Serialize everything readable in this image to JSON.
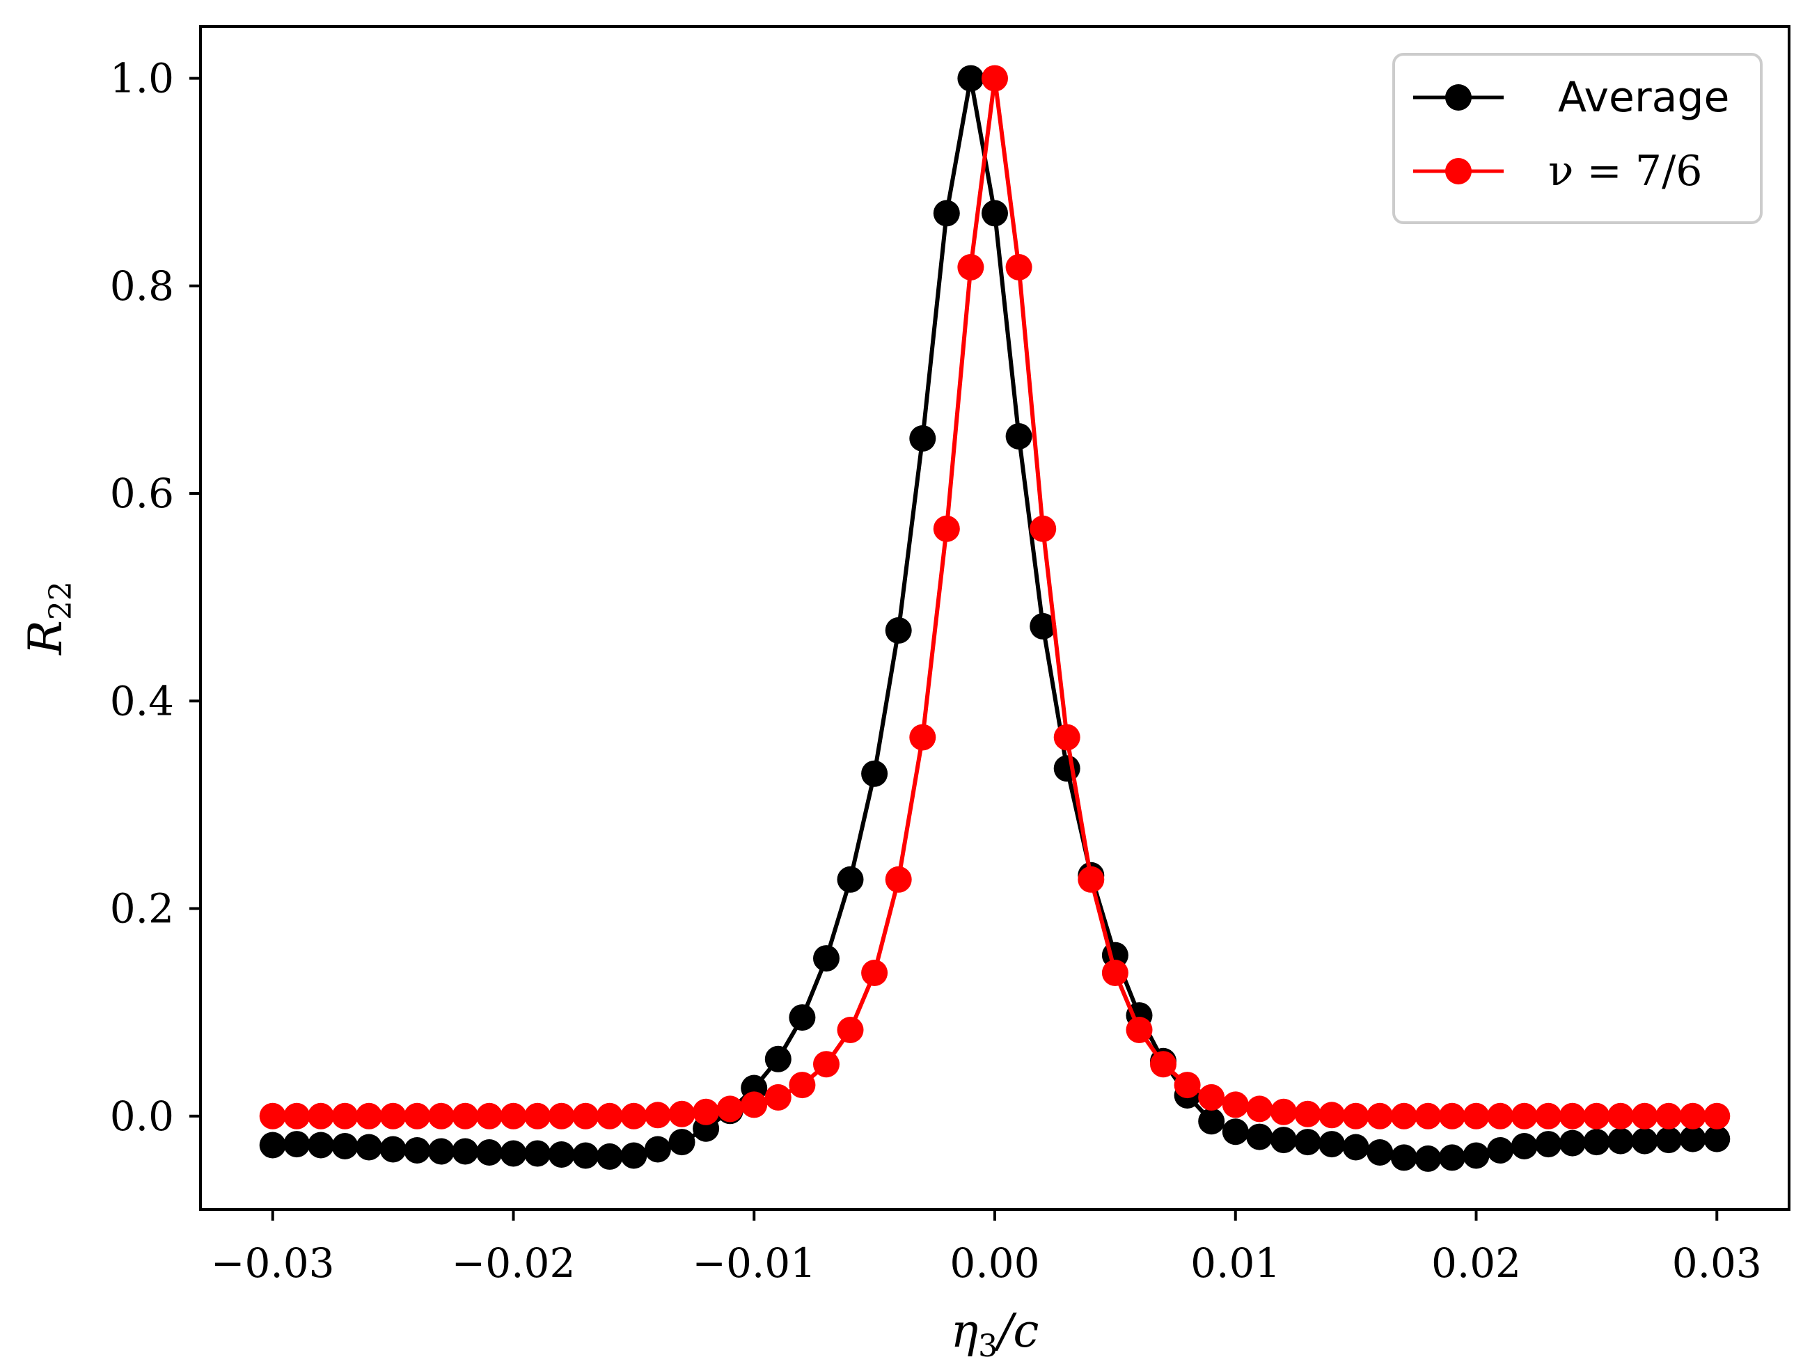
{
  "chart_data": {
    "type": "line",
    "xlabel": "η3/c",
    "xlabel_base": "η",
    "xlabel_sub": "3",
    "xlabel_tail": "/c",
    "ylabel": "R22",
    "ylabel_base": "R",
    "ylabel_sub": "22",
    "xlim": [
      -0.033,
      0.033
    ],
    "ylim": [
      -0.09,
      1.05
    ],
    "xticks": [
      -0.03,
      -0.02,
      -0.01,
      0.0,
      0.01,
      0.02,
      0.03
    ],
    "xtick_labels": [
      "−0.03",
      "−0.02",
      "−0.01",
      "0.00",
      "0.01",
      "0.02",
      "0.03"
    ],
    "yticks": [
      0.0,
      0.2,
      0.4,
      0.6,
      0.8,
      1.0
    ],
    "ytick_labels": [
      "0.0",
      "0.2",
      "0.4",
      "0.6",
      "0.8",
      "1.0"
    ],
    "grid": false,
    "legend_position": "top-right",
    "x": [
      -0.03,
      -0.029,
      -0.028,
      -0.027,
      -0.026,
      -0.025,
      -0.024,
      -0.023,
      -0.022,
      -0.021,
      -0.02,
      -0.019,
      -0.018,
      -0.017,
      -0.016,
      -0.015,
      -0.014,
      -0.013,
      -0.012,
      -0.011,
      -0.01,
      -0.009,
      -0.008,
      -0.007,
      -0.006,
      -0.005,
      -0.004,
      -0.003,
      -0.002,
      -0.001,
      0.0,
      0.001,
      0.002,
      0.003,
      0.004,
      0.005,
      0.006,
      0.007,
      0.008,
      0.009,
      0.01,
      0.011,
      0.012,
      0.013,
      0.014,
      0.015,
      0.016,
      0.017,
      0.018,
      0.019,
      0.02,
      0.021,
      0.022,
      0.023,
      0.024,
      0.025,
      0.026,
      0.027,
      0.028,
      0.029,
      0.03
    ],
    "series": [
      {
        "name": "Average",
        "color": "#000000",
        "values": [
          -0.028,
          -0.027,
          -0.028,
          -0.029,
          -0.03,
          -0.032,
          -0.033,
          -0.034,
          -0.034,
          -0.035,
          -0.036,
          -0.036,
          -0.037,
          -0.038,
          -0.039,
          -0.038,
          -0.032,
          -0.025,
          -0.012,
          0.005,
          0.027,
          0.055,
          0.095,
          0.152,
          0.228,
          0.33,
          0.468,
          0.653,
          0.87,
          1.0,
          0.87,
          0.655,
          0.472,
          0.335,
          0.232,
          0.155,
          0.097,
          0.053,
          0.02,
          -0.005,
          -0.015,
          -0.02,
          -0.023,
          -0.025,
          -0.027,
          -0.03,
          -0.035,
          -0.04,
          -0.041,
          -0.04,
          -0.038,
          -0.033,
          -0.029,
          -0.027,
          -0.026,
          -0.025,
          -0.024,
          -0.024,
          -0.023,
          -0.022,
          -0.022
        ]
      },
      {
        "name": "ν = 7/6",
        "name_math": "ν = 7/6",
        "color": "#ff0000",
        "values": [
          0.0,
          0.0,
          0.0,
          0.0,
          0.0,
          0.0,
          0.0,
          0.0,
          0.0,
          0.0,
          0.0,
          0.0,
          0.0,
          0.0,
          0.0,
          0.0,
          0.001,
          0.002,
          0.004,
          0.007,
          0.011,
          0.018,
          0.03,
          0.05,
          0.083,
          0.138,
          0.228,
          0.365,
          0.566,
          0.818,
          1.0,
          0.818,
          0.566,
          0.365,
          0.228,
          0.138,
          0.083,
          0.05,
          0.03,
          0.018,
          0.011,
          0.007,
          0.004,
          0.002,
          0.001,
          0.0,
          0.0,
          0.0,
          0.0,
          0.0,
          0.0,
          0.0,
          0.0,
          0.0,
          0.0,
          0.0,
          0.0,
          0.0,
          0.0,
          0.0,
          0.0
        ]
      }
    ]
  }
}
